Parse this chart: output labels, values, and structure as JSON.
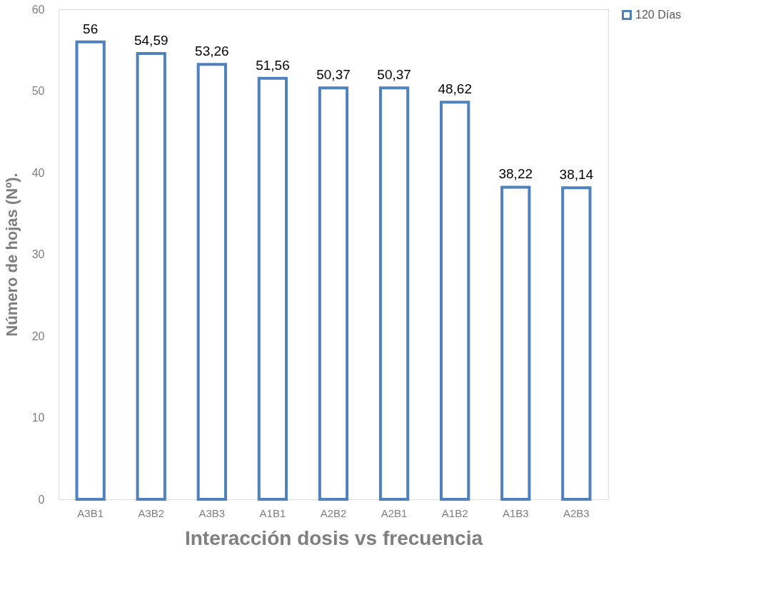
{
  "chart_data": {
    "type": "bar",
    "xlabel": "Interacción dosis vs frecuencia",
    "ylabel": "Número de hojas (Nº).",
    "categories": [
      "A3B1",
      "A3B2",
      "A3B3",
      "A1B1",
      "A2B2",
      "A2B1",
      "A1B2",
      "A1B3",
      "A2B3"
    ],
    "series": [
      {
        "name": "120 Días",
        "color": "#4f81bd",
        "values": [
          56,
          54.59,
          53.26,
          51.56,
          50.37,
          50.37,
          48.62,
          38.22,
          38.14
        ]
      }
    ],
    "value_labels": [
      "56",
      "54,59",
      "53,26",
      "51,56",
      "50,37",
      "50,37",
      "48,62",
      "38,22",
      "38,14"
    ],
    "ylim": [
      0,
      60
    ],
    "yticks": [
      0,
      10,
      20,
      30,
      40,
      50,
      60
    ],
    "grid": false,
    "legend": "right"
  }
}
